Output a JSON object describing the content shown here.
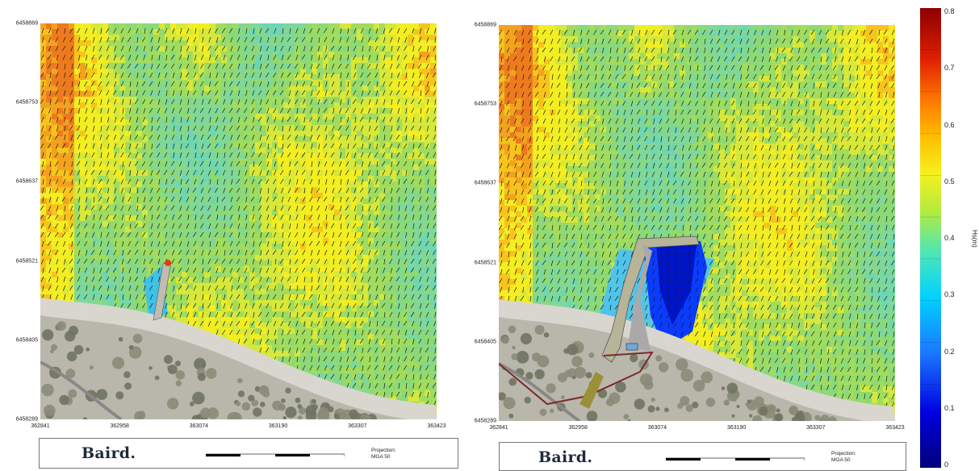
{
  "chart_data": [
    {
      "type": "heatmap",
      "panel": "existing",
      "y_ticks": [
        "6458869",
        "6458753",
        "6458637",
        "6458521",
        "6458405",
        "6458289"
      ],
      "x_ticks": [
        "362841",
        "362958",
        "363074",
        "363190",
        "363307",
        "363423"
      ],
      "x_range": [
        362841,
        363423
      ],
      "y_range": [
        6458289,
        6458869
      ],
      "vector_overlay": "wave direction arrows",
      "footer": {
        "logo": "Baird.",
        "projection_line1": "Projection:",
        "projection_line2": "MGA 50"
      }
    },
    {
      "type": "heatmap",
      "panel": "proposed",
      "y_ticks": [
        "6458869",
        "6458753",
        "6458637",
        "6458521",
        "6458405",
        "6458289"
      ],
      "x_ticks": [
        "362841",
        "362958",
        "363074",
        "363190",
        "363307",
        "363423"
      ],
      "x_range": [
        362841,
        363423
      ],
      "y_range": [
        6458289,
        6458869
      ],
      "vector_overlay": "wave direction arrows",
      "footer": {
        "logo": "Baird.",
        "projection_line1": "Projection:",
        "projection_line2": "MGA 50"
      }
    }
  ],
  "colorbar": {
    "label": "Hs(m)",
    "ticks": [
      "0.8",
      "0.7",
      "0.6",
      "0.5",
      "0.4",
      "0.3",
      "0.2",
      "0.1",
      "0"
    ],
    "range": [
      0,
      0.8
    ],
    "colors": [
      "#00008b",
      "#0000ff",
      "#1e6fff",
      "#00c8ff",
      "#40e0c8",
      "#9ae65a",
      "#f0f020",
      "#ffb000",
      "#ff6000",
      "#e02000",
      "#a00000"
    ]
  }
}
